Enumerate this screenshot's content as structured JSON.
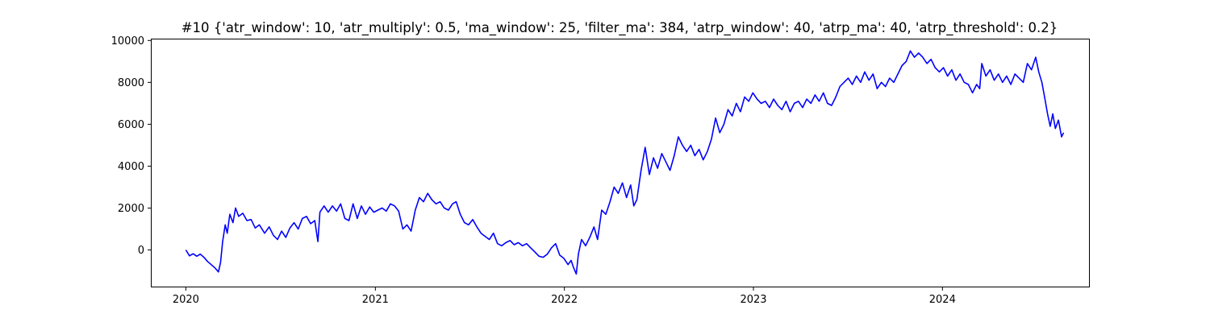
{
  "chart_data": {
    "type": "line",
    "title": "#10 {'atr_window': 10, 'atr_multiply': 0.5, 'ma_window': 25, 'filter_ma': 384, 'atrp_window': 40, 'atrp_ma': 40, 'atrp_threshold': 0.2}",
    "xlabel": "",
    "ylabel": "",
    "xlim": [
      "2019-10-27",
      "2024-10-10"
    ],
    "ylim": [
      -1750,
      10050
    ],
    "grid": false,
    "legend": "none",
    "x_ticks": [
      {
        "date": "2020-01-01",
        "label": "2020"
      },
      {
        "date": "2021-01-01",
        "label": "2021"
      },
      {
        "date": "2022-01-01",
        "label": "2022"
      },
      {
        "date": "2023-01-01",
        "label": "2023"
      },
      {
        "date": "2024-01-01",
        "label": "2024"
      }
    ],
    "y_ticks": [
      {
        "value": 0,
        "label": "0"
      },
      {
        "value": 2000,
        "label": "2000"
      },
      {
        "value": 4000,
        "label": "4000"
      },
      {
        "value": 6000,
        "label": "6000"
      },
      {
        "value": 8000,
        "label": "8000"
      },
      {
        "value": 10000,
        "label": "10000"
      }
    ],
    "series": [
      {
        "color": "#0000ff",
        "points": [
          [
            "2020-01-01",
            0
          ],
          [
            "2020-01-08",
            -280
          ],
          [
            "2020-01-15",
            -180
          ],
          [
            "2020-01-22",
            -300
          ],
          [
            "2020-01-29",
            -200
          ],
          [
            "2020-02-05",
            -350
          ],
          [
            "2020-02-12",
            -550
          ],
          [
            "2020-02-19",
            -700
          ],
          [
            "2020-02-26",
            -850
          ],
          [
            "2020-03-04",
            -1050
          ],
          [
            "2020-03-08",
            -600
          ],
          [
            "2020-03-12",
            400
          ],
          [
            "2020-03-17",
            1200
          ],
          [
            "2020-03-21",
            800
          ],
          [
            "2020-03-26",
            1700
          ],
          [
            "2020-04-01",
            1300
          ],
          [
            "2020-04-06",
            2000
          ],
          [
            "2020-04-12",
            1600
          ],
          [
            "2020-04-20",
            1750
          ],
          [
            "2020-04-28",
            1400
          ],
          [
            "2020-05-06",
            1450
          ],
          [
            "2020-05-14",
            1050
          ],
          [
            "2020-05-22",
            1200
          ],
          [
            "2020-06-01",
            800
          ],
          [
            "2020-06-10",
            1100
          ],
          [
            "2020-06-18",
            700
          ],
          [
            "2020-06-26",
            500
          ],
          [
            "2020-07-04",
            900
          ],
          [
            "2020-07-12",
            600
          ],
          [
            "2020-07-20",
            1050
          ],
          [
            "2020-07-28",
            1300
          ],
          [
            "2020-08-05",
            1000
          ],
          [
            "2020-08-13",
            1500
          ],
          [
            "2020-08-21",
            1600
          ],
          [
            "2020-08-29",
            1250
          ],
          [
            "2020-09-06",
            1400
          ],
          [
            "2020-09-12",
            400
          ],
          [
            "2020-09-16",
            1800
          ],
          [
            "2020-09-24",
            2100
          ],
          [
            "2020-10-02",
            1800
          ],
          [
            "2020-10-10",
            2100
          ],
          [
            "2020-10-18",
            1850
          ],
          [
            "2020-10-26",
            2200
          ],
          [
            "2020-11-03",
            1500
          ],
          [
            "2020-11-11",
            1400
          ],
          [
            "2020-11-19",
            2200
          ],
          [
            "2020-11-27",
            1500
          ],
          [
            "2020-12-05",
            2100
          ],
          [
            "2020-12-13",
            1700
          ],
          [
            "2020-12-21",
            2050
          ],
          [
            "2020-12-29",
            1800
          ],
          [
            "2021-01-06",
            1900
          ],
          [
            "2021-01-14",
            2000
          ],
          [
            "2021-01-22",
            1850
          ],
          [
            "2021-01-30",
            2200
          ],
          [
            "2021-02-07",
            2100
          ],
          [
            "2021-02-15",
            1850
          ],
          [
            "2021-02-23",
            1000
          ],
          [
            "2021-03-03",
            1200
          ],
          [
            "2021-03-11",
            900
          ],
          [
            "2021-03-19",
            1900
          ],
          [
            "2021-03-27",
            2500
          ],
          [
            "2021-04-04",
            2300
          ],
          [
            "2021-04-12",
            2700
          ],
          [
            "2021-04-20",
            2400
          ],
          [
            "2021-04-28",
            2200
          ],
          [
            "2021-05-06",
            2300
          ],
          [
            "2021-05-14",
            2000
          ],
          [
            "2021-05-22",
            1900
          ],
          [
            "2021-05-30",
            2200
          ],
          [
            "2021-06-06",
            2300
          ],
          [
            "2021-06-14",
            1700
          ],
          [
            "2021-06-22",
            1300
          ],
          [
            "2021-06-30",
            1200
          ],
          [
            "2021-07-08",
            1450
          ],
          [
            "2021-07-16",
            1100
          ],
          [
            "2021-07-24",
            800
          ],
          [
            "2021-08-01",
            650
          ],
          [
            "2021-08-09",
            500
          ],
          [
            "2021-08-17",
            800
          ],
          [
            "2021-08-25",
            300
          ],
          [
            "2021-09-02",
            200
          ],
          [
            "2021-09-10",
            350
          ],
          [
            "2021-09-18",
            450
          ],
          [
            "2021-09-26",
            250
          ],
          [
            "2021-10-04",
            350
          ],
          [
            "2021-10-12",
            200
          ],
          [
            "2021-10-20",
            300
          ],
          [
            "2021-10-28",
            100
          ],
          [
            "2021-11-05",
            -100
          ],
          [
            "2021-11-13",
            -300
          ],
          [
            "2021-11-21",
            -350
          ],
          [
            "2021-11-29",
            -200
          ],
          [
            "2021-12-07",
            100
          ],
          [
            "2021-12-15",
            300
          ],
          [
            "2021-12-23",
            -250
          ],
          [
            "2021-12-31",
            -400
          ],
          [
            "2022-01-08",
            -700
          ],
          [
            "2022-01-14",
            -500
          ],
          [
            "2022-01-18",
            -800
          ],
          [
            "2022-01-24",
            -1150
          ],
          [
            "2022-01-28",
            -200
          ],
          [
            "2022-02-03",
            500
          ],
          [
            "2022-02-11",
            200
          ],
          [
            "2022-02-19",
            600
          ],
          [
            "2022-02-27",
            1100
          ],
          [
            "2022-03-06",
            500
          ],
          [
            "2022-03-14",
            1900
          ],
          [
            "2022-03-22",
            1700
          ],
          [
            "2022-03-30",
            2300
          ],
          [
            "2022-04-07",
            3000
          ],
          [
            "2022-04-15",
            2700
          ],
          [
            "2022-04-23",
            3200
          ],
          [
            "2022-05-01",
            2500
          ],
          [
            "2022-05-09",
            3100
          ],
          [
            "2022-05-15",
            2100
          ],
          [
            "2022-05-21",
            2400
          ],
          [
            "2022-05-29",
            3800
          ],
          [
            "2022-06-06",
            4900
          ],
          [
            "2022-06-14",
            3600
          ],
          [
            "2022-06-22",
            4400
          ],
          [
            "2022-06-30",
            3900
          ],
          [
            "2022-07-08",
            4600
          ],
          [
            "2022-07-16",
            4200
          ],
          [
            "2022-07-24",
            3800
          ],
          [
            "2022-08-01",
            4500
          ],
          [
            "2022-08-09",
            5400
          ],
          [
            "2022-08-17",
            5000
          ],
          [
            "2022-08-25",
            4700
          ],
          [
            "2022-09-02",
            5000
          ],
          [
            "2022-09-10",
            4500
          ],
          [
            "2022-09-18",
            4800
          ],
          [
            "2022-09-26",
            4300
          ],
          [
            "2022-10-04",
            4700
          ],
          [
            "2022-10-12",
            5300
          ],
          [
            "2022-10-20",
            6300
          ],
          [
            "2022-10-28",
            5600
          ],
          [
            "2022-11-05",
            6000
          ],
          [
            "2022-11-13",
            6700
          ],
          [
            "2022-11-21",
            6400
          ],
          [
            "2022-11-29",
            7000
          ],
          [
            "2022-12-07",
            6600
          ],
          [
            "2022-12-15",
            7300
          ],
          [
            "2022-12-23",
            7100
          ],
          [
            "2022-12-31",
            7500
          ],
          [
            "2023-01-08",
            7200
          ],
          [
            "2023-01-16",
            7000
          ],
          [
            "2023-01-24",
            7100
          ],
          [
            "2023-02-01",
            6800
          ],
          [
            "2023-02-09",
            7200
          ],
          [
            "2023-02-17",
            6900
          ],
          [
            "2023-02-25",
            6700
          ],
          [
            "2023-03-05",
            7100
          ],
          [
            "2023-03-13",
            6600
          ],
          [
            "2023-03-21",
            7000
          ],
          [
            "2023-03-29",
            7100
          ],
          [
            "2023-04-06",
            6800
          ],
          [
            "2023-04-14",
            7200
          ],
          [
            "2023-04-22",
            7000
          ],
          [
            "2023-04-30",
            7400
          ],
          [
            "2023-05-08",
            7100
          ],
          [
            "2023-05-16",
            7500
          ],
          [
            "2023-05-24",
            7000
          ],
          [
            "2023-06-01",
            6900
          ],
          [
            "2023-06-09",
            7300
          ],
          [
            "2023-06-17",
            7800
          ],
          [
            "2023-06-25",
            8000
          ],
          [
            "2023-07-03",
            8200
          ],
          [
            "2023-07-11",
            7900
          ],
          [
            "2023-07-19",
            8300
          ],
          [
            "2023-07-27",
            8000
          ],
          [
            "2023-08-04",
            8500
          ],
          [
            "2023-08-12",
            8100
          ],
          [
            "2023-08-20",
            8400
          ],
          [
            "2023-08-28",
            7700
          ],
          [
            "2023-09-05",
            8000
          ],
          [
            "2023-09-13",
            7800
          ],
          [
            "2023-09-21",
            8200
          ],
          [
            "2023-09-29",
            8000
          ],
          [
            "2023-10-07",
            8400
          ],
          [
            "2023-10-15",
            8800
          ],
          [
            "2023-10-23",
            9000
          ],
          [
            "2023-10-31",
            9500
          ],
          [
            "2023-11-08",
            9200
          ],
          [
            "2023-11-16",
            9400
          ],
          [
            "2023-11-24",
            9200
          ],
          [
            "2023-12-02",
            8900
          ],
          [
            "2023-12-10",
            9100
          ],
          [
            "2023-12-18",
            8700
          ],
          [
            "2023-12-26",
            8500
          ],
          [
            "2024-01-03",
            8700
          ],
          [
            "2024-01-11",
            8300
          ],
          [
            "2024-01-19",
            8600
          ],
          [
            "2024-01-27",
            8100
          ],
          [
            "2024-02-04",
            8400
          ],
          [
            "2024-02-12",
            8000
          ],
          [
            "2024-02-20",
            7900
          ],
          [
            "2024-02-28",
            7500
          ],
          [
            "2024-03-07",
            7900
          ],
          [
            "2024-03-13",
            7700
          ],
          [
            "2024-03-17",
            8900
          ],
          [
            "2024-03-25",
            8300
          ],
          [
            "2024-04-02",
            8600
          ],
          [
            "2024-04-10",
            8100
          ],
          [
            "2024-04-18",
            8400
          ],
          [
            "2024-04-26",
            8000
          ],
          [
            "2024-05-04",
            8300
          ],
          [
            "2024-05-12",
            7900
          ],
          [
            "2024-05-20",
            8400
          ],
          [
            "2024-05-28",
            8200
          ],
          [
            "2024-06-05",
            8000
          ],
          [
            "2024-06-13",
            8900
          ],
          [
            "2024-06-21",
            8600
          ],
          [
            "2024-06-29",
            9200
          ],
          [
            "2024-07-05",
            8500
          ],
          [
            "2024-07-11",
            8000
          ],
          [
            "2024-07-17",
            7200
          ],
          [
            "2024-07-22",
            6500
          ],
          [
            "2024-07-27",
            5900
          ],
          [
            "2024-08-01",
            6500
          ],
          [
            "2024-08-06",
            5800
          ],
          [
            "2024-08-12",
            6200
          ],
          [
            "2024-08-18",
            5400
          ],
          [
            "2024-08-22",
            5600
          ]
        ]
      }
    ]
  }
}
